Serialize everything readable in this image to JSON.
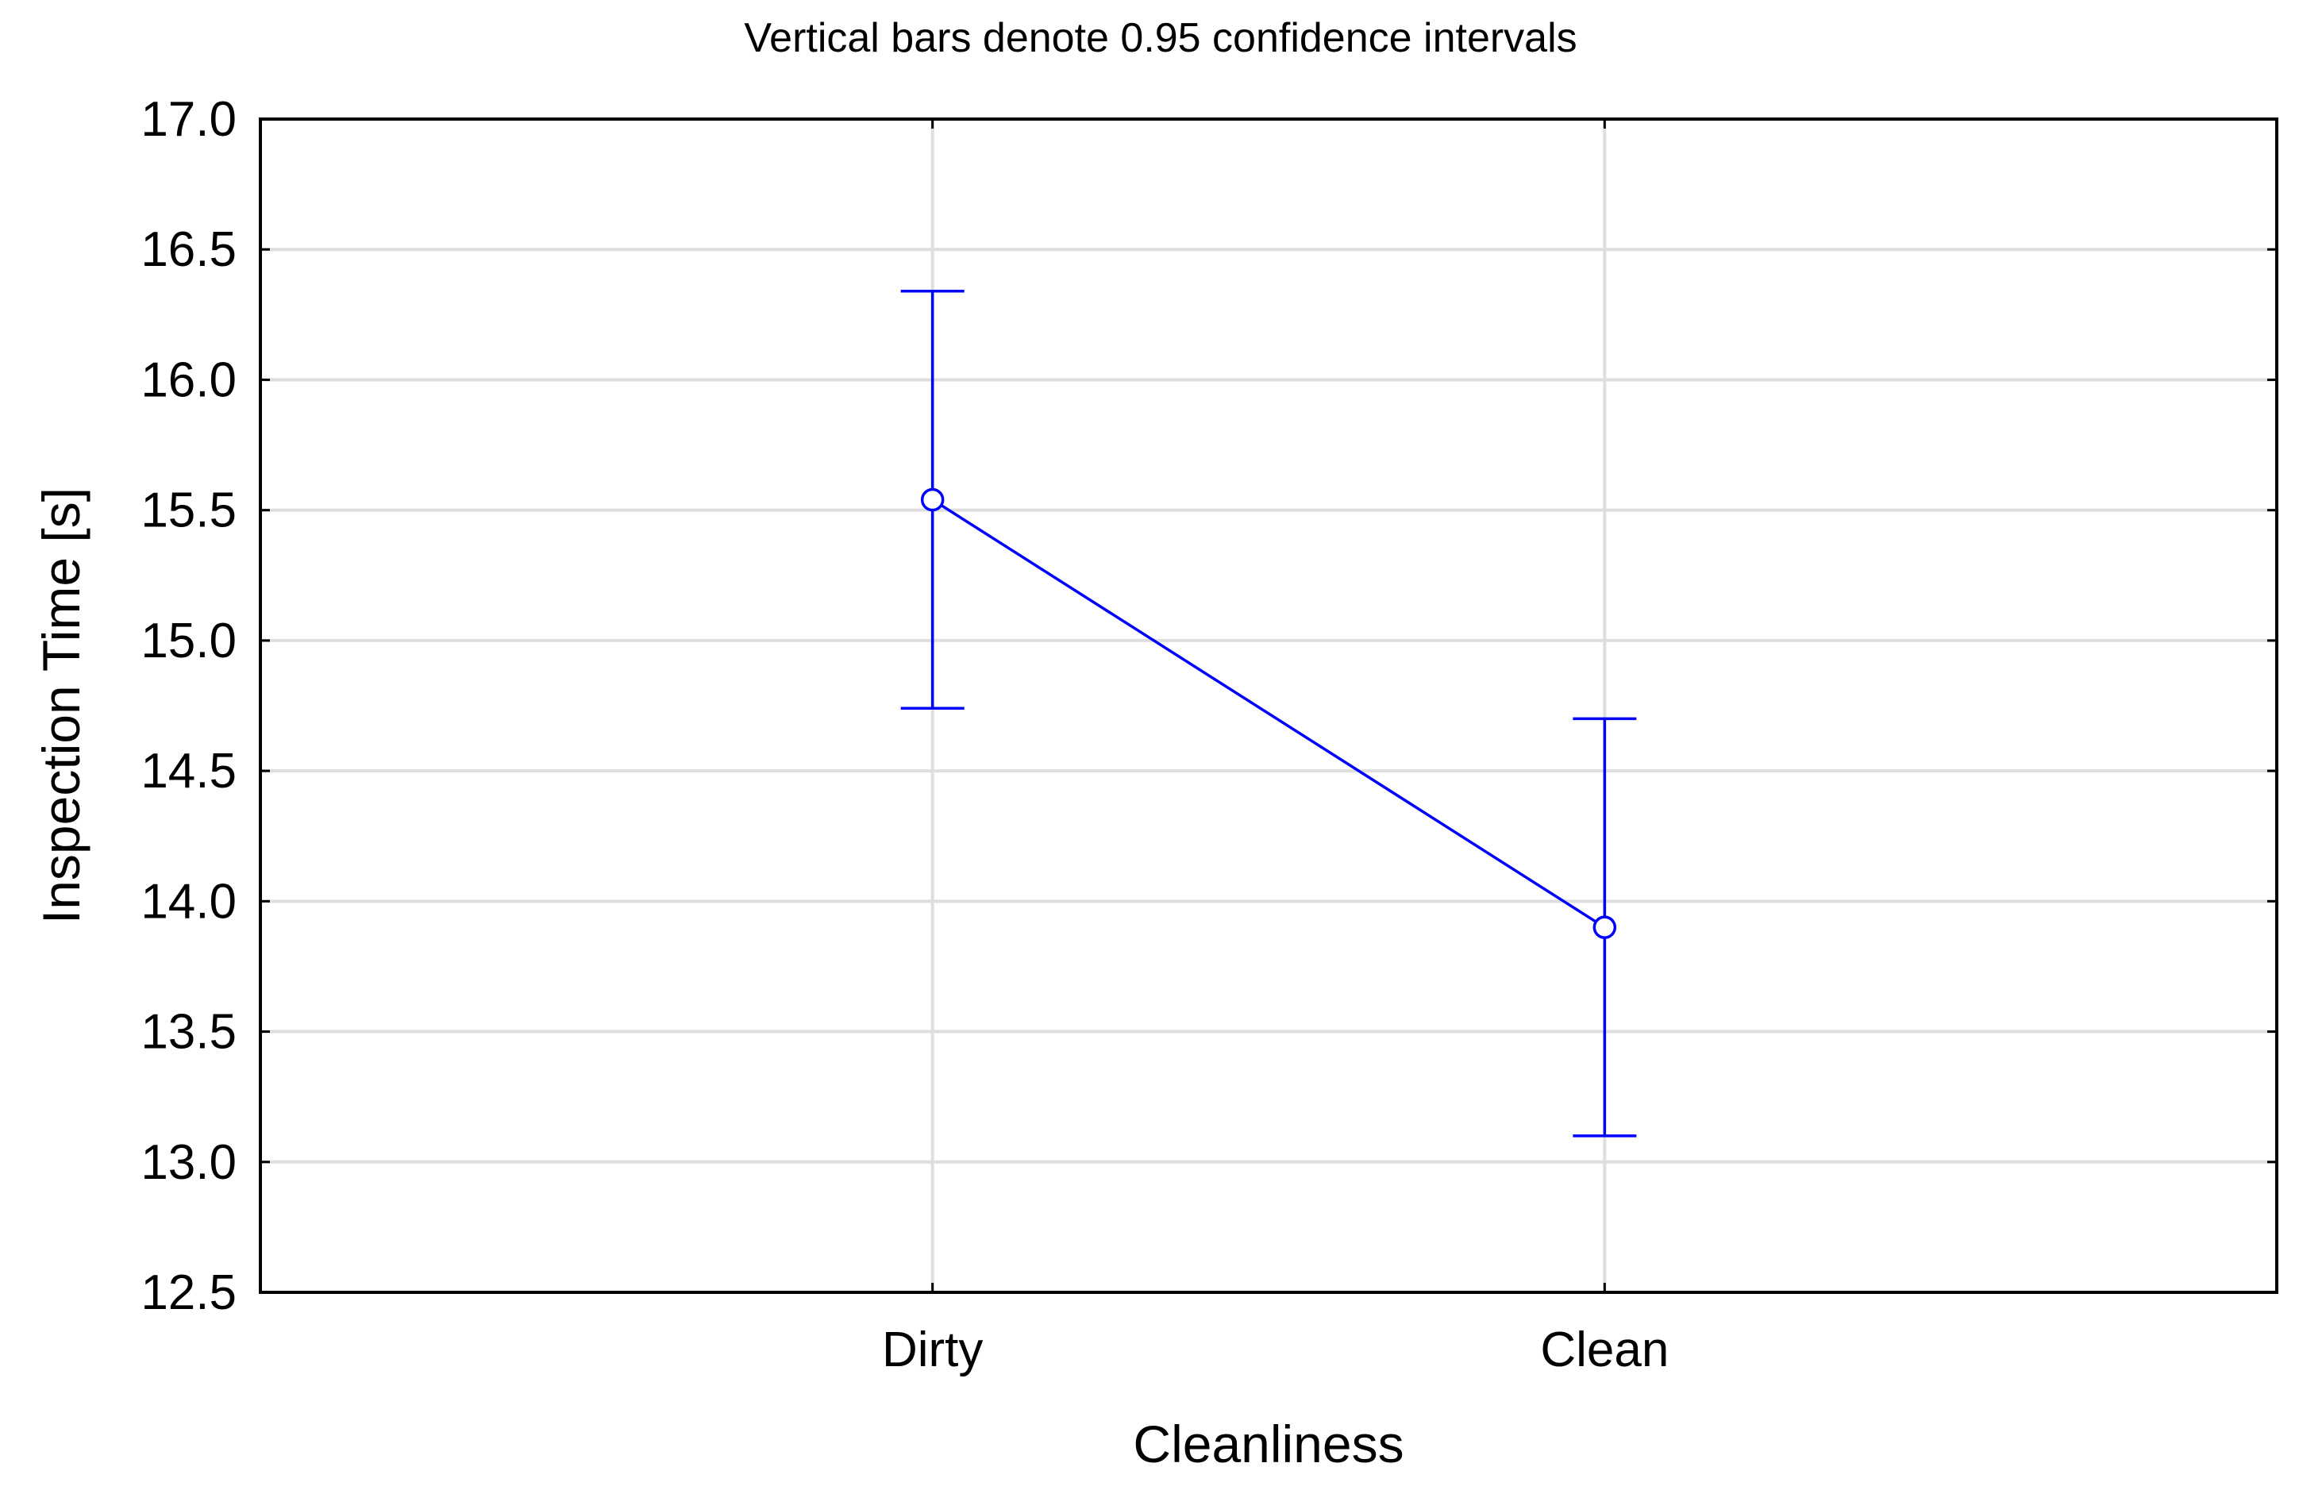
{
  "chart_data": {
    "type": "line",
    "title": "",
    "subtitle": "Vertical bars denote 0.95 confidence intervals",
    "xlabel": "Cleanliness",
    "ylabel": "Inspection Time [s]",
    "categories": [
      "Dirty",
      "Clean"
    ],
    "series": [
      {
        "values": [
          15.54,
          13.9
        ],
        "ci_lower": [
          14.74,
          13.1
        ],
        "ci_upper": [
          16.34,
          14.7
        ],
        "marker": "open-circle"
      }
    ],
    "ylim": [
      12.5,
      17.0
    ],
    "yticks": [
      "12.5",
      "13.0",
      "13.5",
      "14.0",
      "14.5",
      "15.0",
      "15.5",
      "16.0",
      "16.5",
      "17.0"
    ],
    "grid": true,
    "legend": "none",
    "colors": {
      "series": "#0000ff",
      "grid": "#dedede",
      "axis": "#000000"
    }
  }
}
